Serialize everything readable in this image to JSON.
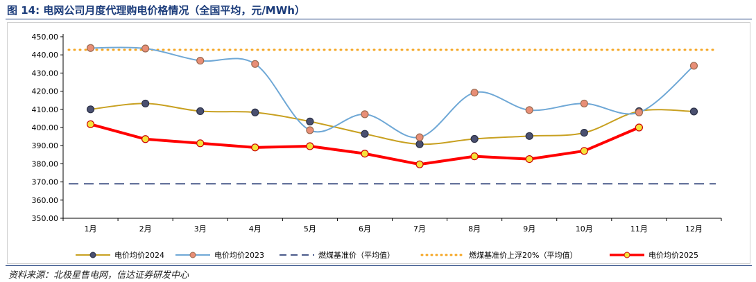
{
  "figure": {
    "title": "图 14:  电网公司月度代理购电价格情况（全国平均，元/MWh）",
    "source": "资料来源：北极星售电网，信达证券研发中心"
  },
  "chart_data": {
    "type": "line",
    "categories": [
      "1月",
      "2月",
      "3月",
      "4月",
      "5月",
      "6月",
      "7月",
      "8月",
      "9月",
      "10月",
      "11月",
      "12月"
    ],
    "ylim": [
      350,
      450
    ],
    "yticks": [
      "350.00",
      "360.00",
      "370.00",
      "380.00",
      "390.00",
      "400.00",
      "410.00",
      "420.00",
      "430.00",
      "440.00",
      "450.00"
    ],
    "grid": false,
    "legend_position": "bottom",
    "series": [
      {
        "name": "电价均价2024",
        "color": "#c8a020",
        "marker": "#4a5070",
        "markerStroke": "#2a2f45",
        "style": "solid",
        "width": 2,
        "smooth": true,
        "values": [
          410.0,
          413.2,
          409.0,
          408.3,
          403.3,
          396.5,
          390.8,
          393.7,
          395.3,
          397.1,
          409.0,
          408.8
        ]
      },
      {
        "name": "电价均价2023",
        "color": "#6fa8d6",
        "marker": "#e88e76",
        "markerStroke": "#9a6a50",
        "style": "solid",
        "width": 2,
        "smooth": true,
        "values": [
          443.8,
          443.5,
          436.8,
          435.0,
          398.5,
          407.3,
          394.6,
          419.2,
          409.6,
          413.2,
          408.3,
          434.0
        ]
      },
      {
        "name": "燃煤基准价（平均值）",
        "color": "#4a5a8a",
        "style": "dashed",
        "width": 2,
        "values": [
          369.0,
          369.0,
          369.0,
          369.0,
          369.0,
          369.0,
          369.0,
          369.0,
          369.0,
          369.0,
          369.0,
          369.0
        ]
      },
      {
        "name": "燃煤基准价上浮20%（平均值）",
        "color": "#f5a623",
        "style": "dotted",
        "width": 3,
        "values": [
          442.8,
          442.8,
          442.8,
          442.8,
          442.8,
          442.8,
          442.8,
          442.8,
          442.8,
          442.8,
          442.8,
          442.8
        ]
      },
      {
        "name": "电价均价2025",
        "color": "#ff0000",
        "marker": "#f5e23a",
        "markerStroke": "#cc0000",
        "style": "solid",
        "width": 4,
        "smooth": false,
        "values": [
          401.8,
          393.6,
          391.3,
          389.0,
          389.7,
          385.6,
          379.7,
          384.1,
          382.6,
          387.1,
          400.0,
          null
        ]
      }
    ]
  }
}
